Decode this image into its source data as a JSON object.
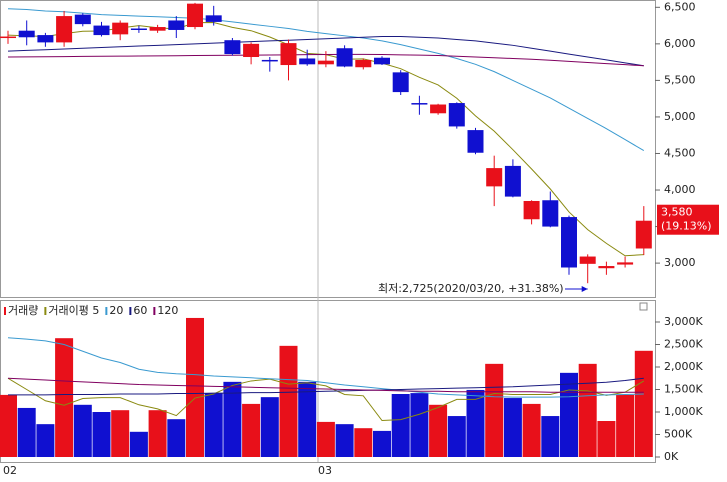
{
  "chart_data": [
    {
      "type": "candlestick",
      "open": [
        6100,
        6180,
        6120,
        6020,
        6400,
        6250,
        6130,
        6210,
        6180,
        6320,
        6230,
        6390,
        6050,
        5820,
        5780,
        5710,
        5800,
        5720,
        5940,
        5680,
        5810,
        5610,
        5190,
        5050,
        5190,
        4820,
        4050,
        4330,
        3600,
        3860,
        3630,
        2990,
        2930,
        2980,
        3200
      ],
      "high": [
        6180,
        6320,
        6150,
        6450,
        6420,
        6300,
        6320,
        6250,
        6260,
        6380,
        6560,
        6520,
        6080,
        6020,
        5820,
        6060,
        5920,
        5900,
        5980,
        5800,
        5830,
        5640,
        5290,
        5180,
        5200,
        4850,
        4470,
        4420,
        3860,
        3980,
        3650,
        3120,
        3020,
        3090,
        3780
      ],
      "low": [
        6000,
        5980,
        5960,
        5960,
        6240,
        6100,
        6050,
        6150,
        6150,
        6080,
        6200,
        6250,
        5840,
        5720,
        5620,
        5500,
        5700,
        5680,
        5680,
        5650,
        5710,
        5300,
        5030,
        5030,
        4840,
        4490,
        3780,
        3900,
        3530,
        3490,
        2840,
        2725,
        2840,
        2940,
        3110
      ],
      "close": [
        6100,
        6090,
        6020,
        6380,
        6270,
        6120,
        6290,
        6190,
        6230,
        6190,
        6550,
        6300,
        5860,
        6000,
        5760,
        6010,
        5720,
        5770,
        5690,
        5780,
        5720,
        5340,
        5180,
        5170,
        4870,
        4510,
        4300,
        3910,
        3850,
        3500,
        2940,
        3090,
        2960,
        3010,
        3580
      ],
      "up_color": "#e8101a",
      "down_color": "#1010d0",
      "lines": [
        {
          "color": "#8a8a10",
          "values": [
            6120,
            6110,
            6100,
            6140,
            6172,
            6176,
            6216,
            6250,
            6220,
            6204,
            6290,
            6292,
            6226,
            6180,
            6094,
            5986,
            5870,
            5852,
            5790,
            5794,
            5736,
            5660,
            5542,
            5438,
            5256,
            5014,
            4806,
            4552,
            4288,
            4014,
            3700,
            3458,
            3270,
            3100,
            3116
          ]
        },
        {
          "color": "#3a9ad0",
          "values": [
            6480,
            6470,
            6450,
            6440,
            6420,
            6400,
            6390,
            6380,
            6370,
            6360,
            6350,
            6330,
            6300,
            6270,
            6240,
            6210,
            6170,
            6140,
            6110,
            6080,
            6040,
            5990,
            5930,
            5870,
            5800,
            5720,
            5620,
            5500,
            5380,
            5260,
            5120,
            4980,
            4840,
            4690,
            4540
          ]
        },
        {
          "color": "#1a1a80",
          "values": [
            5900,
            5910,
            5920,
            5930,
            5940,
            5950,
            5960,
            5970,
            5980,
            5990,
            6000,
            6010,
            6020,
            6030,
            6040,
            6050,
            6060,
            6070,
            6080,
            6090,
            6100,
            6100,
            6090,
            6080,
            6060,
            6040,
            6010,
            5980,
            5940,
            5900,
            5860,
            5820,
            5780,
            5740,
            5700
          ]
        },
        {
          "color": "#800060",
          "values": [
            5820,
            5822,
            5824,
            5826,
            5828,
            5830,
            5832,
            5834,
            5836,
            5838,
            5840,
            5842,
            5844,
            5846,
            5848,
            5850,
            5852,
            5854,
            5856,
            5856,
            5854,
            5850,
            5845,
            5840,
            5830,
            5820,
            5810,
            5800,
            5790,
            5775,
            5760,
            5745,
            5730,
            5715,
            5700
          ]
        }
      ],
      "ylim": [
        2550,
        6600
      ],
      "yticks": [
        {
          "value": 3000,
          "label": "3,000"
        },
        {
          "value": 3500,
          "label": ""
        },
        {
          "value": 4000,
          "label": "4,000"
        },
        {
          "value": 4500,
          "label": "4,500"
        },
        {
          "value": 5000,
          "label": "5,000"
        },
        {
          "value": 5500,
          "label": "5,500"
        },
        {
          "value": 6000,
          "label": "6,000"
        },
        {
          "value": 6500,
          "label": "6,500"
        }
      ],
      "low_annotation": "최저:2,725(2020/03/20, +31.38%)",
      "last_price_label": "3,580",
      "last_change_label": "(19.13%)"
    },
    {
      "type": "bar",
      "categories": [
        "02",
        null,
        null,
        null,
        null,
        null,
        null,
        null,
        null,
        null,
        null,
        null,
        null,
        null,
        null,
        null,
        null,
        "03",
        null,
        null,
        null,
        null,
        null,
        null,
        null,
        null,
        null,
        null,
        null,
        null,
        null,
        null,
        null,
        null,
        null
      ],
      "series": [
        {
          "name": "거래량",
          "color": "#e8101a",
          "values": [
            1380,
            1090,
            730,
            2640,
            1160,
            1000,
            1040,
            560,
            1040,
            840,
            3090,
            1420,
            1670,
            1180,
            1330,
            2470,
            1670,
            780,
            730,
            640,
            580,
            1400,
            1420,
            1160,
            910,
            1490,
            2070,
            1310,
            1180,
            910,
            1870,
            2070,
            800,
            1380,
            2360
          ]
        }
      ],
      "lines": [
        {
          "name": "거래이평 5",
          "color": "#8a8a10",
          "values": [
            1750,
            1500,
            1250,
            1150,
            1300,
            1320,
            1320,
            1160,
            1070,
            920,
            1310,
            1400,
            1590,
            1690,
            1730,
            1620,
            1650,
            1580,
            1390,
            1360,
            810,
            830,
            950,
            1100,
            1280,
            1280,
            1410,
            1390,
            1390,
            1390,
            1490,
            1470,
            1370,
            1440,
            1690
          ]
        },
        {
          "name": "20",
          "color": "#3a9ad0",
          "values": [
            2650,
            2620,
            2580,
            2500,
            2350,
            2200,
            2100,
            1950,
            1880,
            1850,
            1830,
            1800,
            1780,
            1760,
            1740,
            1720,
            1700,
            1650,
            1600,
            1560,
            1520,
            1480,
            1440,
            1400,
            1380,
            1360,
            1340,
            1330,
            1330,
            1330,
            1340,
            1360,
            1380,
            1390,
            1400
          ]
        },
        {
          "name": "60",
          "color": "#1a1a80",
          "values": [
            1380,
            1380,
            1380,
            1390,
            1390,
            1390,
            1400,
            1400,
            1400,
            1410,
            1410,
            1420,
            1420,
            1430,
            1430,
            1440,
            1450,
            1460,
            1470,
            1480,
            1490,
            1500,
            1510,
            1520,
            1530,
            1540,
            1550,
            1560,
            1580,
            1600,
            1620,
            1640,
            1660,
            1700,
            1750
          ]
        },
        {
          "name": "120",
          "color": "#800060",
          "values": [
            1750,
            1730,
            1710,
            1690,
            1670,
            1650,
            1630,
            1610,
            1600,
            1590,
            1580,
            1570,
            1560,
            1550,
            1540,
            1530,
            1520,
            1510,
            1500,
            1490,
            1480,
            1470,
            1460,
            1460,
            1450,
            1450,
            1450,
            1450,
            1450,
            1440,
            1440,
            1440,
            1440,
            1440,
            1440
          ]
        }
      ],
      "ylim": [
        0,
        3100
      ],
      "yticks": [
        {
          "value": 0,
          "label": "0K"
        },
        {
          "value": 500,
          "label": "500K"
        },
        {
          "value": 1000,
          "label": "1,000K"
        },
        {
          "value": 1500,
          "label": "1,500K"
        },
        {
          "value": 2000,
          "label": "2,000K"
        },
        {
          "value": 2500,
          "label": "2,500K"
        },
        {
          "value": 3000,
          "label": "3,000K"
        }
      ]
    }
  ]
}
